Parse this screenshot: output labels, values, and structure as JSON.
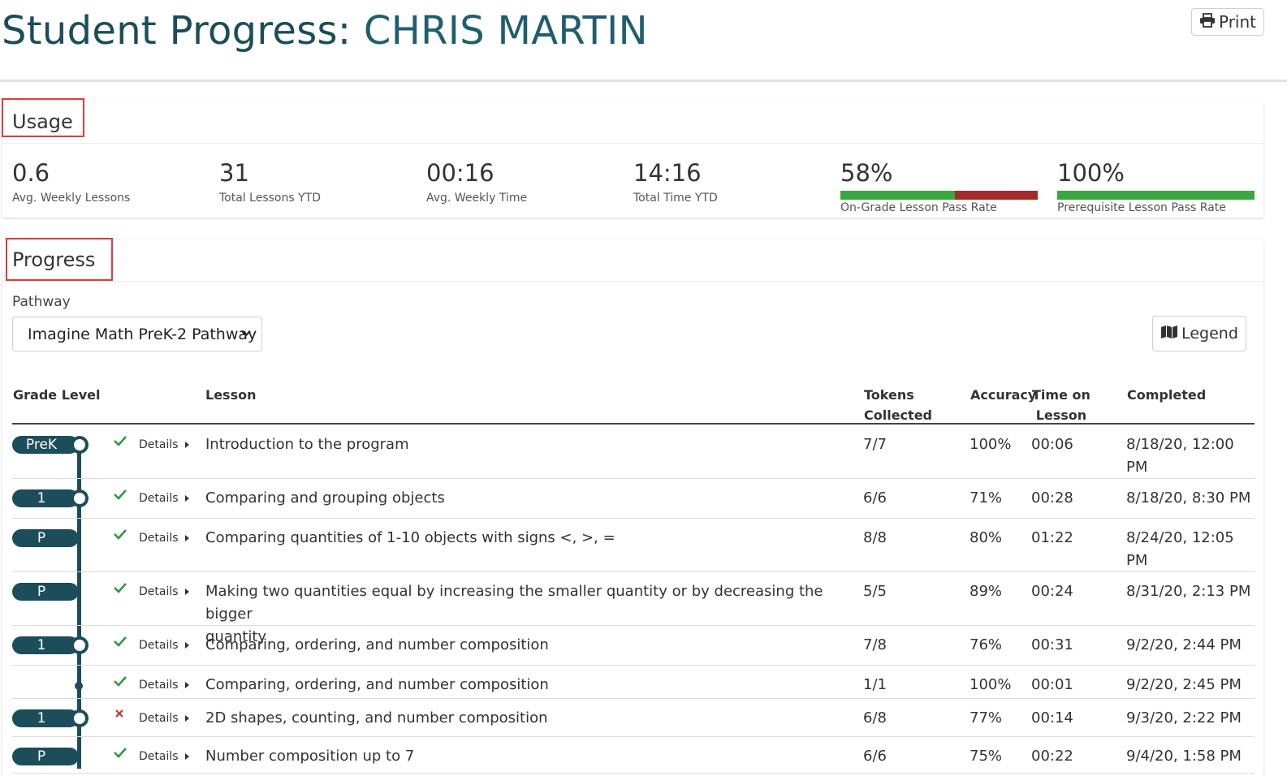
{
  "header": {
    "title_prefix": "Student Progress:",
    "student_name": "CHRIS MARTIN",
    "print_label": "Print"
  },
  "usage": {
    "title": "Usage",
    "metrics": [
      {
        "value": "0.6",
        "label": "Avg. Weekly Lessons"
      },
      {
        "value": "31",
        "label": "Total Lessons YTD"
      },
      {
        "value": "00:16",
        "label": "Avg. Weekly Time"
      },
      {
        "value": "14:16",
        "label": "Total Time YTD"
      }
    ],
    "on_grade": {
      "value": "58%",
      "label": "On-Grade Lesson Pass Rate",
      "pass_fraction": 0.58
    },
    "prerequisite": {
      "value": "100%",
      "label": "Prerequisite Lesson Pass Rate",
      "pass_fraction": 1.0
    },
    "colors": {
      "pass": "#3aa640",
      "fail": "#a52b2b"
    }
  },
  "progress": {
    "title": "Progress",
    "pathway_label": "Pathway",
    "pathway_selected": "Imagine Math PreK-2 Pathway",
    "legend_label": "Legend",
    "columns": {
      "grade_level": "Grade Level",
      "lesson": "Lesson",
      "tokens_line1": "Tokens",
      "tokens_line2": "Collected",
      "accuracy": "Accuracy",
      "time_line1": "Time on",
      "time_line2": "Lesson",
      "completed": "Completed"
    },
    "rows": [
      {
        "grade": "PreK",
        "status": "pass",
        "details": "Details",
        "lesson": "Introduction to the program",
        "lesson_line2": "",
        "tokens": "7/7",
        "accuracy": "100%",
        "time": "00:06",
        "completed": "8/18/20, 12:00",
        "completed_line2": "PM"
      },
      {
        "grade": "1",
        "status": "pass",
        "details": "Details",
        "lesson": "Comparing and grouping objects",
        "lesson_line2": "",
        "tokens": "6/6",
        "accuracy": "71%",
        "time": "00:28",
        "completed": "8/18/20, 8:30 PM",
        "completed_line2": ""
      },
      {
        "grade": "P",
        "status": "pass",
        "details": "Details",
        "lesson": "Comparing quantities of 1-10 objects with signs <, >, =",
        "lesson_line2": "",
        "tokens": "8/8",
        "accuracy": "80%",
        "time": "01:22",
        "completed": "8/24/20, 12:05",
        "completed_line2": "PM"
      },
      {
        "grade": "P",
        "status": "pass",
        "details": "Details",
        "lesson": "Making two quantities equal by increasing the smaller quantity or by decreasing the bigger",
        "lesson_line2": "quantity",
        "tokens": "5/5",
        "accuracy": "89%",
        "time": "00:24",
        "completed": "8/31/20, 2:13 PM",
        "completed_line2": ""
      },
      {
        "grade": "1",
        "status": "pass",
        "details": "Details",
        "lesson": "Comparing, ordering, and number composition",
        "lesson_line2": "",
        "tokens": "7/8",
        "accuracy": "76%",
        "time": "00:31",
        "completed": "9/2/20, 2:44 PM",
        "completed_line2": ""
      },
      {
        "grade": "",
        "status": "pass",
        "details": "Details",
        "lesson": "Comparing, ordering, and number composition",
        "lesson_line2": "",
        "tokens": "1/1",
        "accuracy": "100%",
        "time": "00:01",
        "completed": "9/2/20, 2:45 PM",
        "completed_line2": ""
      },
      {
        "grade": "1",
        "status": "fail",
        "details": "Details",
        "lesson": "2D shapes, counting, and number composition",
        "lesson_line2": "",
        "tokens": "6/8",
        "accuracy": "77%",
        "time": "00:14",
        "completed": "9/3/20, 2:22 PM",
        "completed_line2": ""
      },
      {
        "grade": "P",
        "status": "pass",
        "details": "Details",
        "lesson": "Number composition up to 7",
        "lesson_line2": "",
        "tokens": "6/6",
        "accuracy": "75%",
        "time": "00:22",
        "completed": "9/4/20, 1:58 PM",
        "completed_line2": ""
      }
    ]
  }
}
